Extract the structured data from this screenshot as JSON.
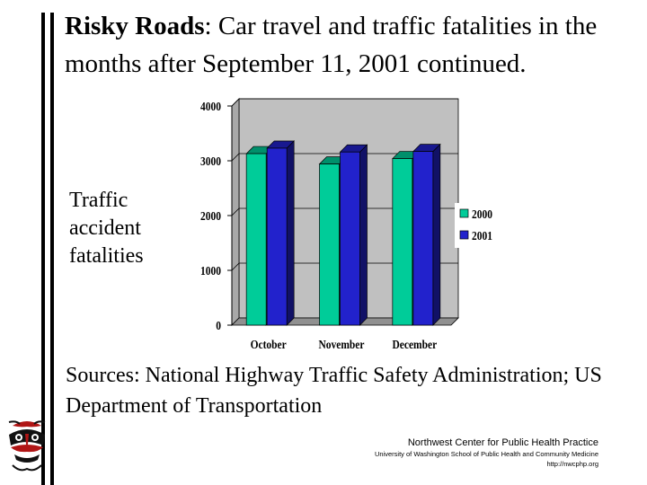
{
  "slide": {
    "title_bold": "Risky Roads",
    "title_rest": ": Car travel and traffic fatalities in the months after September 11, 2001 continued.",
    "side_label_lines": [
      "Traffic",
      "accident",
      "fatalities"
    ],
    "sources": "Sources:  National Highway Traffic Safety Administration; US Department of Transportation",
    "org_name": "Northwest Center for Public Health Practice",
    "org_sub": "University of Washington School of Public Health and Community Medicine",
    "org_url": "http://nwcphp.org"
  },
  "colors": {
    "series_2000": "#00cc99",
    "series_2001": "#2222cc",
    "wall": "#c0c0c0"
  },
  "chart_data": {
    "type": "bar",
    "categories": [
      "October",
      "November",
      "December"
    ],
    "series": [
      {
        "name": "2000",
        "values": [
          3130,
          2940,
          3040
        ]
      },
      {
        "name": "2001",
        "values": [
          3230,
          3160,
          3170
        ]
      }
    ],
    "yticks": [
      "0",
      "1000",
      "2000",
      "3000",
      "4000"
    ],
    "ylim": [
      0,
      4000
    ],
    "grid": true,
    "legend": "right"
  }
}
